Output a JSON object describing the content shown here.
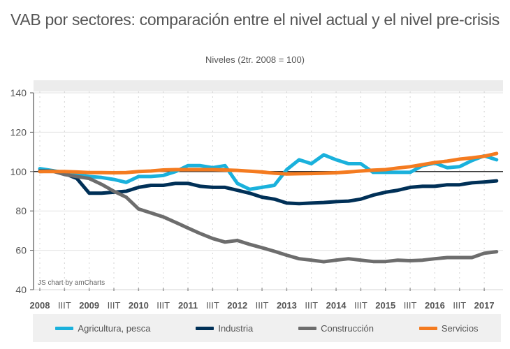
{
  "chart_data": {
    "type": "line",
    "title": "VAB por sectores: comparación entre el nivel actual y el nivel pre-crisis",
    "subtitle": "Niveles (2tr. 2008 = 100)",
    "xlabel": "",
    "ylabel": "",
    "ylim": [
      40,
      140
    ],
    "yticks": [
      40,
      60,
      80,
      100,
      120,
      140
    ],
    "reference_line": 100,
    "grid": true,
    "legend_position": "bottom",
    "x_tick_labels": [
      "2008",
      "IIIT",
      "2009",
      "IIIT",
      "2010",
      "IIIT",
      "2011",
      "IIIT",
      "2012",
      "IIIT",
      "2013",
      "IIIT",
      "2014",
      "IIIT",
      "2015",
      "IIIT",
      "2016",
      "IIIT",
      "2017"
    ],
    "x": [
      "2008T1",
      "2008T2",
      "2008T3",
      "2008T4",
      "2009T1",
      "2009T2",
      "2009T3",
      "2009T4",
      "2010T1",
      "2010T2",
      "2010T3",
      "2010T4",
      "2011T1",
      "2011T2",
      "2011T3",
      "2011T4",
      "2012T1",
      "2012T2",
      "2012T3",
      "2012T4",
      "2013T1",
      "2013T2",
      "2013T3",
      "2013T4",
      "2014T1",
      "2014T2",
      "2014T3",
      "2014T4",
      "2015T1",
      "2015T2",
      "2015T3",
      "2015T4",
      "2016T1",
      "2016T2",
      "2016T3",
      "2016T4",
      "2017T1",
      "2017T2"
    ],
    "series": [
      {
        "name": "Agricultura, pesca",
        "color": "#1ab1dc",
        "values": [
          101.5,
          100.5,
          99.5,
          98.5,
          97.5,
          97,
          96,
          94.5,
          97.5,
          97.5,
          98,
          100,
          103,
          103,
          102,
          103,
          94,
          91,
          92,
          93,
          101,
          106,
          104,
          108.5,
          106,
          104,
          104,
          99.6,
          99.6,
          99.6,
          99.6,
          103,
          104.3,
          102,
          102.5,
          105.6,
          108,
          106
        ]
      },
      {
        "name": "Industria",
        "color": "#003057",
        "values": [
          100.3,
          100.3,
          99,
          96.5,
          89,
          89,
          89.5,
          90,
          92,
          93,
          93,
          94,
          94,
          92.5,
          92,
          92,
          90.5,
          89,
          87,
          86,
          84,
          83.7,
          84,
          84.3,
          84.7,
          85,
          86,
          88,
          89.5,
          90.5,
          92,
          92.5,
          92.5,
          93.3,
          93.3,
          94.3,
          94.7,
          95.3
        ]
      },
      {
        "name": "Construcción",
        "color": "#6d6d6d",
        "values": [
          100,
          100.3,
          98.5,
          97.5,
          96.5,
          93.5,
          90,
          87,
          81,
          79,
          77,
          74.2,
          71.3,
          68.5,
          66,
          64.2,
          65,
          63,
          61.3,
          59.5,
          57.5,
          55.7,
          55,
          54.2,
          55,
          55.7,
          55,
          54.3,
          54.3,
          55,
          54.7,
          55,
          55.7,
          56.3,
          56.3,
          56.3,
          58.5,
          59.3
        ]
      },
      {
        "name": "Servicios",
        "color": "#f47b20",
        "values": [
          100,
          100,
          100,
          99.8,
          99.5,
          99.5,
          99.4,
          99.5,
          100,
          100.3,
          100.8,
          101,
          101,
          101,
          101,
          100.8,
          100.6,
          100.2,
          99.8,
          99.2,
          98.8,
          98.9,
          99,
          99.2,
          99.4,
          99.8,
          100.3,
          100.7,
          101,
          101.8,
          102.5,
          103.5,
          104.6,
          105.3,
          106.3,
          107,
          107.8,
          109.2
        ]
      }
    ]
  },
  "credit": "JS chart by amCharts"
}
